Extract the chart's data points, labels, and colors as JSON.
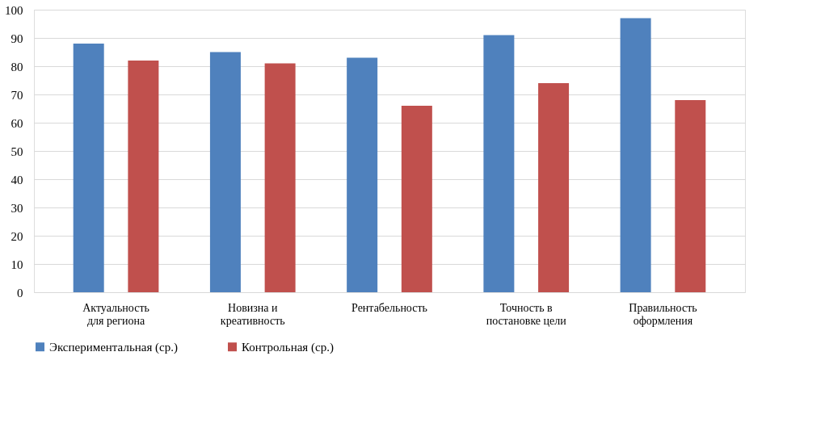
{
  "chart_data": {
    "type": "bar",
    "categories": [
      "Актуальность для региона",
      "Новизна и креативность",
      "Рентабельность",
      "Точность в постановке цели",
      "Правильность оформления"
    ],
    "series": [
      {
        "name": "Экспериментальная (ср.)",
        "color": "#4f81bd",
        "values": [
          88,
          85,
          83,
          91,
          97
        ]
      },
      {
        "name": "Контрольная (ср.)",
        "color": "#c0504d",
        "values": [
          82,
          81,
          66,
          74,
          68
        ]
      }
    ],
    "ylim": [
      0,
      100
    ],
    "yticks": [
      0,
      10,
      20,
      30,
      40,
      50,
      60,
      70,
      80,
      90,
      100
    ],
    "grid": "y",
    "legend": "bottom"
  }
}
